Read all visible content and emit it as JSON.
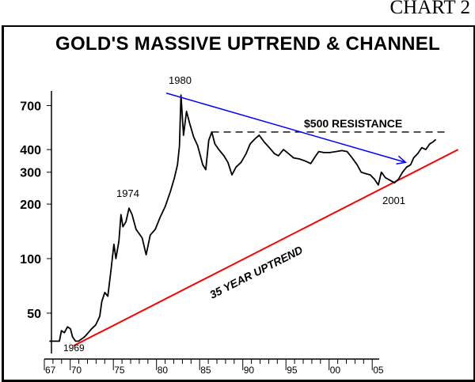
{
  "chart_number": "CHART 2",
  "chart_data": {
    "type": "line",
    "title": "GOLD'S MASSIVE UPTREND & CHANNEL",
    "xlabel": "",
    "ylabel": "",
    "y_scale": "log",
    "ylim": [
      30,
      850
    ],
    "y_ticks": [
      50,
      100,
      200,
      300,
      400,
      700
    ],
    "y_tick_labels": [
      "50",
      "100",
      "200",
      "300",
      "400",
      "700"
    ],
    "x_ticks": [
      1967,
      1970,
      1975,
      1980,
      1985,
      1990,
      1995,
      2000,
      2005
    ],
    "x_tick_labels": [
      "67",
      "70",
      "75",
      "80",
      "85",
      "90",
      "95",
      "00",
      "05"
    ],
    "grid": false,
    "series": [
      {
        "name": "Gold price",
        "color": "#000000",
        "points": [
          [
            1967.0,
            35
          ],
          [
            1968.0,
            35
          ],
          [
            1968.2,
            40
          ],
          [
            1968.5,
            39
          ],
          [
            1968.8,
            42
          ],
          [
            1969.1,
            41
          ],
          [
            1969.3,
            37
          ],
          [
            1969.6,
            35
          ],
          [
            1969.9,
            35
          ],
          [
            1970.5,
            37
          ],
          [
            1971.2,
            41
          ],
          [
            1971.6,
            43
          ],
          [
            1972.0,
            48
          ],
          [
            1972.2,
            58
          ],
          [
            1972.5,
            65
          ],
          [
            1972.8,
            62
          ],
          [
            1973.1,
            85
          ],
          [
            1973.4,
            120
          ],
          [
            1973.6,
            100
          ],
          [
            1973.9,
            125
          ],
          [
            1974.1,
            175
          ],
          [
            1974.3,
            150
          ],
          [
            1974.6,
            160
          ],
          [
            1974.9,
            190
          ],
          [
            1975.2,
            175
          ],
          [
            1975.6,
            145
          ],
          [
            1976.2,
            130
          ],
          [
            1976.6,
            105
          ],
          [
            1977.0,
            135
          ],
          [
            1977.5,
            145
          ],
          [
            1978.0,
            170
          ],
          [
            1978.5,
            195
          ],
          [
            1979.0,
            235
          ],
          [
            1979.4,
            280
          ],
          [
            1979.7,
            330
          ],
          [
            1979.9,
            420
          ],
          [
            1980.05,
            800
          ],
          [
            1980.3,
            480
          ],
          [
            1980.6,
            650
          ],
          [
            1980.9,
            560
          ],
          [
            1981.3,
            470
          ],
          [
            1981.7,
            420
          ],
          [
            1982.2,
            330
          ],
          [
            1982.5,
            310
          ],
          [
            1982.8,
            450
          ],
          [
            1983.1,
            500
          ],
          [
            1983.4,
            430
          ],
          [
            1983.8,
            400
          ],
          [
            1984.3,
            370
          ],
          [
            1984.7,
            340
          ],
          [
            1985.1,
            290
          ],
          [
            1985.5,
            320
          ],
          [
            1986.0,
            340
          ],
          [
            1986.5,
            380
          ],
          [
            1986.9,
            430
          ],
          [
            1987.4,
            460
          ],
          [
            1987.8,
            480
          ],
          [
            1988.3,
            440
          ],
          [
            1988.8,
            410
          ],
          [
            1989.3,
            380
          ],
          [
            1989.7,
            370
          ],
          [
            1990.2,
            400
          ],
          [
            1990.7,
            380
          ],
          [
            1991.2,
            360
          ],
          [
            1991.8,
            355
          ],
          [
            1992.4,
            345
          ],
          [
            1992.9,
            335
          ],
          [
            1993.4,
            370
          ],
          [
            1993.7,
            390
          ],
          [
            1994.2,
            385
          ],
          [
            1994.8,
            385
          ],
          [
            1995.4,
            390
          ],
          [
            1996.0,
            395
          ],
          [
            1996.5,
            390
          ],
          [
            1997.0,
            360
          ],
          [
            1997.5,
            330
          ],
          [
            1997.9,
            300
          ],
          [
            1998.3,
            295
          ],
          [
            1998.8,
            290
          ],
          [
            1999.2,
            275
          ],
          [
            1999.6,
            255
          ],
          [
            1999.9,
            300
          ],
          [
            2000.3,
            280
          ],
          [
            2000.8,
            270
          ],
          [
            2001.2,
            262
          ],
          [
            2001.6,
            275
          ],
          [
            2002.0,
            300
          ],
          [
            2002.4,
            320
          ],
          [
            2002.8,
            330
          ],
          [
            2003.1,
            360
          ],
          [
            2003.5,
            380
          ],
          [
            2003.9,
            410
          ],
          [
            2004.3,
            400
          ],
          [
            2004.7,
            430
          ],
          [
            2005.0,
            440
          ],
          [
            2005.3,
            455
          ]
        ]
      }
    ],
    "annotations": [
      {
        "id": "a1969",
        "text": "1969"
      },
      {
        "id": "a1974",
        "text": "1974"
      },
      {
        "id": "a1980",
        "text": "1980"
      },
      {
        "id": "a2001",
        "text": "2001"
      },
      {
        "id": "resistance",
        "text": "$500 RESISTANCE",
        "value": 500
      },
      {
        "id": "uptrend",
        "text": "35 YEAR UPTREND"
      }
    ],
    "lines": [
      {
        "name": "35 year uptrend",
        "color": "#ff0000",
        "from": [
          1969.4,
          33
        ],
        "to": [
          2007.5,
          400
        ]
      },
      {
        "name": "downtrend from 1980",
        "color": "#0000ff",
        "from": [
          1978.6,
          820
        ],
        "to": [
          2002.3,
          340
        ]
      },
      {
        "name": "$500 resistance",
        "color": "#000000",
        "style": "dashed",
        "from": [
          1983.1,
          500
        ],
        "to": [
          2006.5,
          500
        ]
      }
    ]
  }
}
